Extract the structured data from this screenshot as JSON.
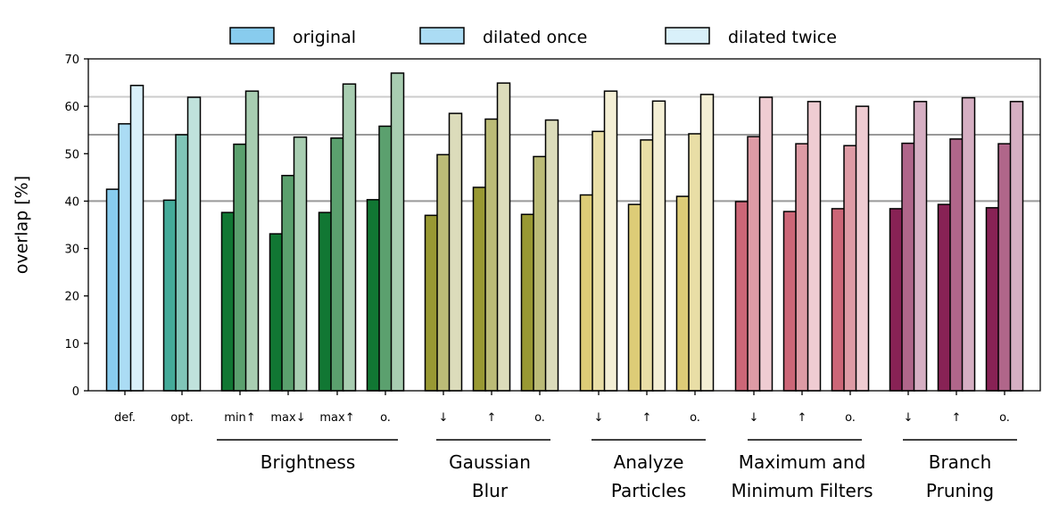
{
  "chart_data": {
    "type": "bar",
    "ylabel": "overlap [%]",
    "ylim": [
      0,
      70
    ],
    "yticks": [
      0,
      10,
      20,
      30,
      40,
      50,
      60,
      70
    ],
    "legend": {
      "placement": "top-center",
      "entries": [
        "original",
        "dilated once",
        "dilated twice"
      ],
      "colors": [
        "#88CCEE",
        "#ABDCF4",
        "#D9F0FA"
      ]
    },
    "reference_lines": [
      {
        "value": 40,
        "color": "#999999"
      },
      {
        "value": 54,
        "color": "#999999"
      },
      {
        "value": 62,
        "color": "#cccccc"
      }
    ],
    "categories": [
      "def.",
      "opt.",
      "min↑",
      "max↓",
      "max↑",
      "o.",
      "↓",
      "↑",
      "o.",
      "↓",
      "↑",
      "o.",
      "↓",
      "↑",
      "o.",
      "↓",
      "↑",
      "o."
    ],
    "series": [
      {
        "name": "original",
        "values": [
          42.5,
          40.2,
          37.6,
          33.1,
          37.6,
          40.3,
          37.0,
          42.9,
          37.2,
          41.3,
          39.3,
          41.0,
          39.9,
          37.8,
          38.4,
          38.4,
          39.3,
          38.6
        ]
      },
      {
        "name": "dilated once",
        "values": [
          56.3,
          54.0,
          52.0,
          45.4,
          53.3,
          55.8,
          49.8,
          57.3,
          49.4,
          54.7,
          52.9,
          54.2,
          53.6,
          52.1,
          51.7,
          52.2,
          53.1,
          52.1
        ]
      },
      {
        "name": "dilated twice",
        "values": [
          64.4,
          61.9,
          63.2,
          53.5,
          64.7,
          67.0,
          58.5,
          64.9,
          57.1,
          63.2,
          61.1,
          62.5,
          61.9,
          61.0,
          60.0,
          61.0,
          61.8,
          61.0
        ]
      }
    ],
    "bar_colors": [
      [
        "#88CCEE",
        "#ABDCF4",
        "#D9F0FA"
      ],
      [
        "#44AA99",
        "#80C5B8",
        "#C0E2DC"
      ],
      [
        "#117733",
        "#5BA06E",
        "#A8CDB1"
      ],
      [
        "#117733",
        "#5BA06E",
        "#A8CDB1"
      ],
      [
        "#117733",
        "#5BA06E",
        "#A8CDB1"
      ],
      [
        "#117733",
        "#5BA06E",
        "#A8CDB1"
      ],
      [
        "#999933",
        "#BBBB77",
        "#DCDCBB"
      ],
      [
        "#999933",
        "#BBBB77",
        "#DCDCBB"
      ],
      [
        "#999933",
        "#BBBB77",
        "#DCDCBB"
      ],
      [
        "#DDCC77",
        "#E9DEA6",
        "#F4EFD5"
      ],
      [
        "#DDCC77",
        "#E9DEA6",
        "#F4EFD5"
      ],
      [
        "#DDCC77",
        "#E9DEA6",
        "#F4EFD5"
      ],
      [
        "#CC6677",
        "#DE9BA5",
        "#EFCCD2"
      ],
      [
        "#CC6677",
        "#DE9BA5",
        "#EFCCD2"
      ],
      [
        "#CC6677",
        "#DE9BA5",
        "#EFCCD2"
      ],
      [
        "#882255",
        "#B0668A",
        "#D6AFC3"
      ],
      [
        "#882255",
        "#B0668A",
        "#D6AFC3"
      ],
      [
        "#882255",
        "#B0668A",
        "#D6AFC3"
      ]
    ],
    "groups": [
      {
        "lines": [
          "Brightness"
        ],
        "members": [
          2,
          5
        ]
      },
      {
        "lines": [
          "Gaussian",
          "Blur"
        ],
        "members": [
          6,
          8
        ]
      },
      {
        "lines": [
          "Analyze",
          "Particles"
        ],
        "members": [
          9,
          11
        ]
      },
      {
        "lines": [
          "Maximum and",
          "Minimum Filters"
        ],
        "members": [
          12,
          14
        ]
      },
      {
        "lines": [
          "Branch",
          "Pruning"
        ],
        "members": [
          15,
          17
        ]
      }
    ]
  }
}
